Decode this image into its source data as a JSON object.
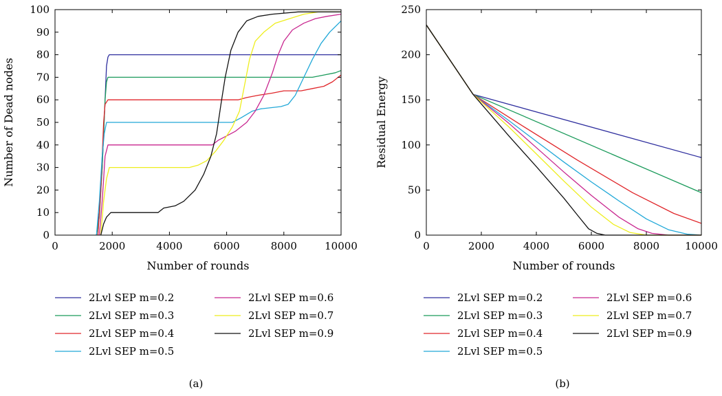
{
  "chart_data": [
    {
      "type": "line",
      "panel_label": "(a)",
      "xlabel": "Number of rounds",
      "ylabel": "Number of Dead nodes",
      "xlim": [
        0,
        10000
      ],
      "ylim": [
        0,
        100
      ],
      "xticks": [
        "0",
        "2000",
        "4000",
        "6000",
        "8000",
        "10000"
      ],
      "yticks": [
        "0",
        "10",
        "20",
        "30",
        "40",
        "50",
        "60",
        "70",
        "80",
        "90",
        "100"
      ],
      "grid": false,
      "legend_position": "below",
      "series": [
        {
          "name": "2Lvl SEP m=0.2",
          "color": "#2e2e9e",
          "points": [
            [
              1450,
              0
            ],
            [
              1550,
              10
            ],
            [
              1650,
              30
            ],
            [
              1750,
              60
            ],
            [
              1800,
              75
            ],
            [
              1850,
              79
            ],
            [
              1900,
              80
            ],
            [
              10000,
              80
            ]
          ]
        },
        {
          "name": "2Lvl SEP m=0.3",
          "color": "#1a9a5a",
          "points": [
            [
              1450,
              0
            ],
            [
              1550,
              8
            ],
            [
              1650,
              30
            ],
            [
              1750,
              60
            ],
            [
              1800,
              68
            ],
            [
              1850,
              70
            ],
            [
              9000,
              70
            ],
            [
              9400,
              71
            ],
            [
              9800,
              72
            ],
            [
              10000,
              73
            ]
          ]
        },
        {
          "name": "2Lvl SEP m=0.4",
          "color": "#e0262a",
          "points": [
            [
              1500,
              0
            ],
            [
              1600,
              20
            ],
            [
              1700,
              50
            ],
            [
              1750,
              58
            ],
            [
              1850,
              60
            ],
            [
              6400,
              60
            ],
            [
              6700,
              61
            ],
            [
              7100,
              62
            ],
            [
              7600,
              63
            ],
            [
              8000,
              64
            ],
            [
              8600,
              64
            ],
            [
              9000,
              65
            ],
            [
              9400,
              66
            ],
            [
              9700,
              68
            ],
            [
              10000,
              71
            ]
          ]
        },
        {
          "name": "2Lvl SEP m=0.5",
          "color": "#21a8d8",
          "points": [
            [
              1450,
              0
            ],
            [
              1550,
              15
            ],
            [
              1650,
              35
            ],
            [
              1720,
              45
            ],
            [
              1800,
              50
            ],
            [
              6200,
              50
            ],
            [
              6500,
              52
            ],
            [
              6900,
              55
            ],
            [
              7200,
              56
            ],
            [
              7900,
              57
            ],
            [
              8150,
              58
            ],
            [
              8400,
              62
            ],
            [
              8700,
              70
            ],
            [
              9000,
              78
            ],
            [
              9300,
              85
            ],
            [
              9600,
              90
            ],
            [
              10000,
              95
            ]
          ]
        },
        {
          "name": "2Lvl SEP m=0.6",
          "color": "#c8268f",
          "points": [
            [
              1550,
              0
            ],
            [
              1650,
              15
            ],
            [
              1750,
              35
            ],
            [
              1850,
              40
            ],
            [
              5500,
              40
            ],
            [
              5700,
              42
            ],
            [
              6000,
              44
            ],
            [
              6300,
              46
            ],
            [
              6700,
              50
            ],
            [
              7000,
              55
            ],
            [
              7300,
              62
            ],
            [
              7600,
              72
            ],
            [
              7800,
              80
            ],
            [
              8000,
              86
            ],
            [
              8300,
              91
            ],
            [
              8700,
              94
            ],
            [
              9100,
              96
            ],
            [
              9500,
              97
            ],
            [
              10000,
              98
            ]
          ]
        },
        {
          "name": "2Lvl SEP m=0.7",
          "color": "#eeee1c",
          "points": [
            [
              1600,
              0
            ],
            [
              1700,
              15
            ],
            [
              1800,
              25
            ],
            [
              1900,
              30
            ],
            [
              4700,
              30
            ],
            [
              5000,
              31
            ],
            [
              5300,
              33
            ],
            [
              5600,
              37
            ],
            [
              5900,
              42
            ],
            [
              6200,
              48
            ],
            [
              6450,
              55
            ],
            [
              6650,
              68
            ],
            [
              6800,
              78
            ],
            [
              7000,
              86
            ],
            [
              7300,
              90
            ],
            [
              7700,
              94
            ],
            [
              8200,
              96
            ],
            [
              8700,
              98
            ],
            [
              9200,
              99
            ],
            [
              10000,
              99
            ]
          ]
        },
        {
          "name": "2Lvl SEP m=0.9",
          "color": "#111111",
          "points": [
            [
              1600,
              0
            ],
            [
              1700,
              5
            ],
            [
              1800,
              8
            ],
            [
              1950,
              10
            ],
            [
              3600,
              10
            ],
            [
              3800,
              12
            ],
            [
              4200,
              13
            ],
            [
              4500,
              15
            ],
            [
              4900,
              20
            ],
            [
              5200,
              27
            ],
            [
              5450,
              35
            ],
            [
              5650,
              45
            ],
            [
              5800,
              58
            ],
            [
              5950,
              70
            ],
            [
              6150,
              82
            ],
            [
              6400,
              90
            ],
            [
              6700,
              95
            ],
            [
              7100,
              97
            ],
            [
              7600,
              98
            ],
            [
              8500,
              99
            ],
            [
              10000,
              99
            ]
          ]
        }
      ]
    },
    {
      "type": "line",
      "panel_label": "(b)",
      "xlabel": "Number of rounds",
      "ylabel": "Residual Energy",
      "xlim": [
        0,
        10000
      ],
      "ylim": [
        0,
        250
      ],
      "xticks": [
        "0",
        "2000",
        "4000",
        "6000",
        "8000",
        "10000"
      ],
      "yticks": [
        "0",
        "50",
        "100",
        "150",
        "200",
        "250"
      ],
      "grid": false,
      "legend_position": "below",
      "series": [
        {
          "name": "2Lvl SEP m=0.2",
          "color": "#2e2e9e",
          "points": [
            [
              0,
              233
            ],
            [
              1700,
              156
            ],
            [
              10000,
              86
            ]
          ]
        },
        {
          "name": "2Lvl SEP m=0.3",
          "color": "#1a9a5a",
          "points": [
            [
              0,
              233
            ],
            [
              1700,
              156
            ],
            [
              10000,
              47
            ]
          ]
        },
        {
          "name": "2Lvl SEP m=0.4",
          "color": "#e0262a",
          "points": [
            [
              0,
              233
            ],
            [
              1700,
              156
            ],
            [
              3500,
              121
            ],
            [
              5500,
              83
            ],
            [
              7500,
              47
            ],
            [
              9000,
              24
            ],
            [
              10000,
              13
            ]
          ]
        },
        {
          "name": "2Lvl SEP m=0.5",
          "color": "#21a8d8",
          "points": [
            [
              0,
              233
            ],
            [
              1700,
              156
            ],
            [
              3000,
              127
            ],
            [
              4000,
              104
            ],
            [
              5000,
              81
            ],
            [
              6000,
              59
            ],
            [
              7000,
              38
            ],
            [
              8000,
              18
            ],
            [
              8800,
              6
            ],
            [
              9500,
              1
            ],
            [
              10000,
              0
            ]
          ]
        },
        {
          "name": "2Lvl SEP m=0.6",
          "color": "#c8268f",
          "points": [
            [
              0,
              233
            ],
            [
              1700,
              156
            ],
            [
              3000,
              124
            ],
            [
              4000,
              97
            ],
            [
              5000,
              70
            ],
            [
              6000,
              44
            ],
            [
              7000,
              20
            ],
            [
              7700,
              7
            ],
            [
              8200,
              2
            ],
            [
              8800,
              0
            ],
            [
              10000,
              0
            ]
          ]
        },
        {
          "name": "2Lvl SEP m=0.7",
          "color": "#eeee1c",
          "points": [
            [
              0,
              233
            ],
            [
              1700,
              156
            ],
            [
              3000,
              120
            ],
            [
              4000,
              90
            ],
            [
              5000,
              60
            ],
            [
              6000,
              31
            ],
            [
              6800,
              12
            ],
            [
              7400,
              3
            ],
            [
              8000,
              0
            ],
            [
              10000,
              0
            ]
          ]
        },
        {
          "name": "2Lvl SEP m=0.9",
          "color": "#111111",
          "points": [
            [
              0,
              233
            ],
            [
              1700,
              156
            ],
            [
              3000,
              110
            ],
            [
              4000,
              76
            ],
            [
              5000,
              41
            ],
            [
              5500,
              22
            ],
            [
              5900,
              7
            ],
            [
              6200,
              2
            ],
            [
              6500,
              0
            ],
            [
              10000,
              0
            ]
          ]
        }
      ]
    }
  ]
}
